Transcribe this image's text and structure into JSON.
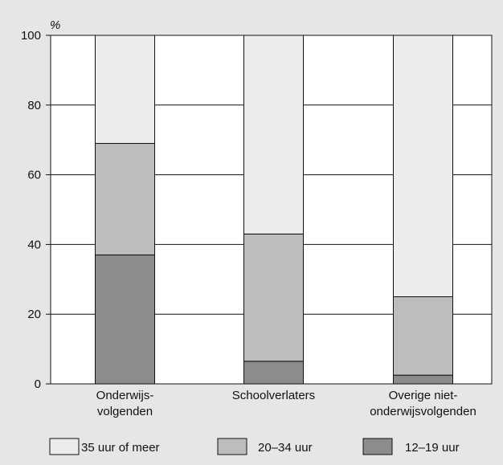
{
  "chart_data": {
    "type": "bar",
    "stacked": true,
    "title": "",
    "xlabel": "",
    "ylabel": "%",
    "ylim": [
      0,
      100
    ],
    "yticks": [
      0,
      20,
      40,
      60,
      80,
      100
    ],
    "grid": true,
    "legend_position": "bottom",
    "categories": [
      [
        "Onderwijs-",
        "volgenden"
      ],
      [
        "Schoolverlaters"
      ],
      [
        "Overige niet-",
        "onderwijsvolgenden"
      ]
    ],
    "series": [
      {
        "name": "12–19 uur",
        "values": [
          37,
          6.5,
          2.5
        ],
        "color": "#8c8c8c"
      },
      {
        "name": "20–34 uur",
        "values": [
          32,
          36.5,
          22.5
        ],
        "color": "#bdbdbf"
      },
      {
        "name": "35 uur of meer",
        "values": [
          31,
          57,
          75
        ],
        "color": "#ececec"
      }
    ],
    "legend_order": [
      2,
      1,
      0
    ]
  }
}
